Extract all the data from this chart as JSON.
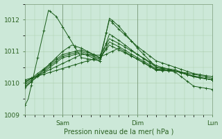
{
  "background_color": "#cce8d8",
  "plot_bg_color": "#cce8d8",
  "grid_color": "#aaccaa",
  "line_color": "#1a5c1a",
  "xlabel": "Pression niveau de la mer( hPa )",
  "ylim": [
    1009,
    1012.5
  ],
  "yticks": [
    1009,
    1010,
    1011,
    1012
  ],
  "xlim": [
    0,
    120
  ],
  "xtick_positions": [
    24,
    72,
    120
  ],
  "xtick_labels": [
    "Sam",
    "Dim",
    "Lun"
  ],
  "figsize": [
    3.2,
    2.0
  ],
  "dpi": 100
}
